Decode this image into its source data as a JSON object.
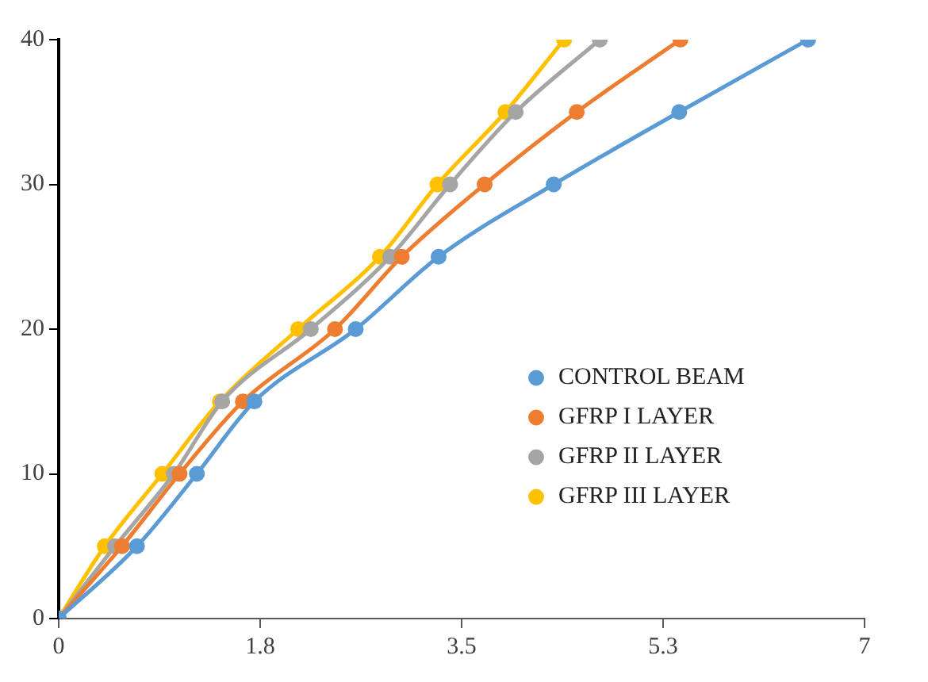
{
  "chart_data": {
    "type": "line",
    "xlim": [
      0,
      7
    ],
    "xticks": [
      0,
      {
        "value": 1.75,
        "label": "1.8"
      },
      3.5,
      {
        "value": 5.25,
        "label": "5.3"
      },
      7
    ],
    "ylim": [
      0,
      40
    ],
    "yticks": [
      0,
      10,
      20,
      30,
      40
    ],
    "grid": false,
    "legend": "right",
    "marker": "circle",
    "line_style": "solid",
    "series": [
      {
        "name": "CONTROL BEAM",
        "color": "#5b9bd5",
        "x": [
          0,
          0.68,
          1.2,
          1.7,
          2.58,
          3.3,
          4.3,
          5.39,
          6.51
        ],
        "values": [
          0,
          5,
          10,
          15,
          20,
          25,
          30,
          35,
          40
        ]
      },
      {
        "name": "GFRP I LAYER",
        "color": "#ed7d31",
        "x": [
          0,
          0.55,
          1.05,
          1.6,
          2.4,
          2.98,
          3.7,
          4.5,
          5.4
        ],
        "values": [
          0,
          5,
          10,
          15,
          20,
          25,
          30,
          35,
          40
        ]
      },
      {
        "name": "GFRP II LAYER",
        "color": "#a5a5a5",
        "x": [
          0,
          0.49,
          1.0,
          1.42,
          2.19,
          2.88,
          3.4,
          3.97,
          4.7
        ],
        "values": [
          0,
          5,
          10,
          15,
          20,
          25,
          30,
          35,
          40
        ]
      },
      {
        "name": "GFRP III LAYER",
        "color": "#ffc000",
        "x": [
          0,
          0.4,
          0.9,
          1.4,
          2.08,
          2.79,
          3.29,
          3.88,
          4.39
        ],
        "values": [
          0,
          5,
          10,
          15,
          20,
          25,
          30,
          35,
          40
        ]
      }
    ]
  }
}
